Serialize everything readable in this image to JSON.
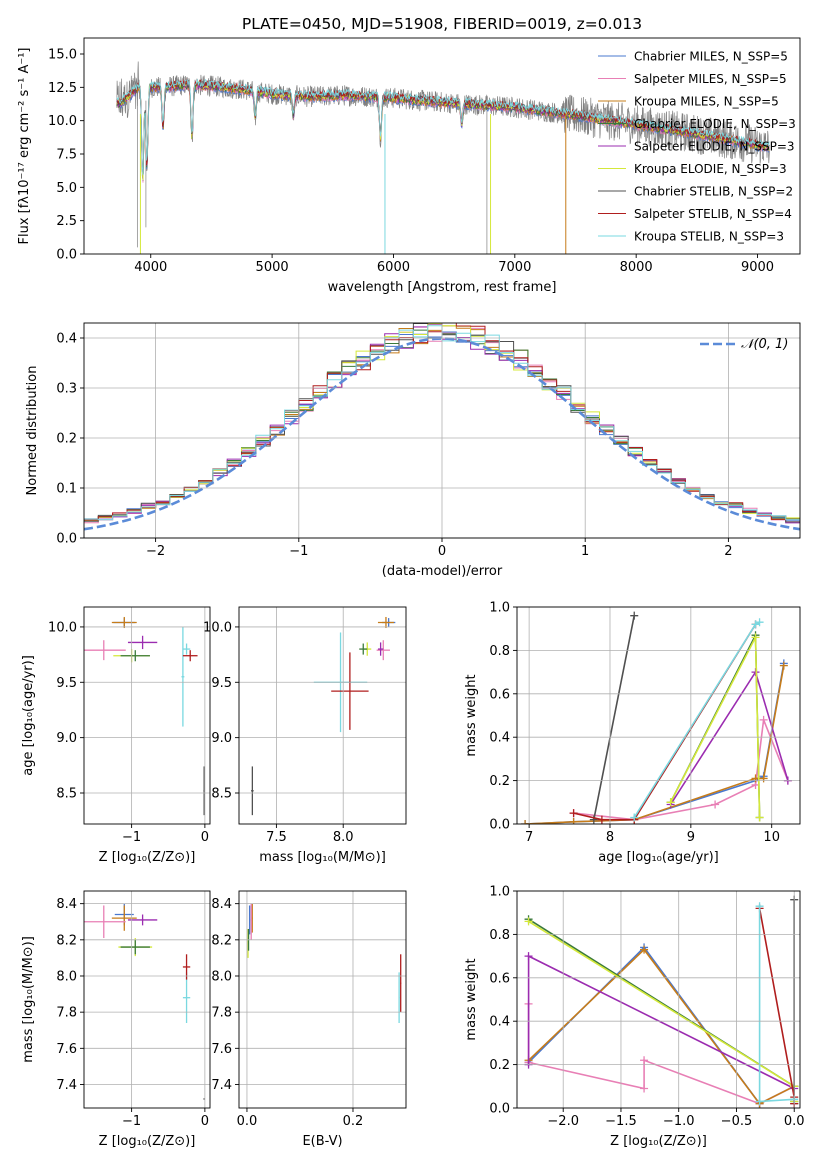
{
  "chart_data": [
    {
      "id": "spectrum",
      "type": "line",
      "title": "PLATE=0450, MJD=51908, FIBERID=0019, z=0.013",
      "xlabel": "wavelength [Angstrom, rest frame]",
      "ylabel": "Flux [fλ10⁻¹⁷ erg cm⁻² s⁻¹ A⁻¹]",
      "xlim": [
        3450,
        9350
      ],
      "ylim": [
        0,
        16.2
      ],
      "xticks": [
        "4000",
        "5000",
        "6000",
        "7000",
        "8000",
        "9000"
      ],
      "yticks": [
        "0.0",
        "2.5",
        "5.0",
        "7.5",
        "10.0",
        "12.5",
        "15.0"
      ],
      "grid": false,
      "legend_position": "top-right",
      "continuum_anchor_points": {
        "x": [
          3750,
          3900,
          4100,
          4300,
          4500,
          4800,
          5000,
          5300,
          5600,
          6000,
          6500,
          7000,
          7500,
          8000,
          8500,
          9100
        ],
        "y": [
          11.3,
          12.5,
          12.5,
          12.7,
          12.6,
          12.3,
          12.0,
          11.8,
          11.9,
          11.7,
          11.3,
          11.0,
          10.4,
          9.7,
          9.0,
          8.0
        ]
      },
      "series": [
        {
          "name": "Chabrier MILES, N_SSP=5"
        },
        {
          "name": "Salpeter MILES, N_SSP=5"
        },
        {
          "name": "Kroupa MILES, N_SSP=5"
        },
        {
          "name": "Chabrier ELODIE, N_SSP=3"
        },
        {
          "name": "Salpeter ELODIE, N_SSP=3"
        },
        {
          "name": "Kroupa ELODIE, N_SSP=3"
        },
        {
          "name": "Chabrier STELIB, N_SSP=2"
        },
        {
          "name": "Salpeter STELIB, N_SSP=4"
        },
        {
          "name": "Kroupa STELIB, N_SSP=3"
        }
      ]
    },
    {
      "id": "residuals",
      "type": "line",
      "xlabel": "(data-model)/error",
      "ylabel": "Normed distribution",
      "xlim": [
        -2.5,
        2.5
      ],
      "ylim": [
        0,
        0.43
      ],
      "xticks": [
        "−2",
        "−1",
        "0",
        "1",
        "2"
      ],
      "yticks": [
        "0.0",
        "0.1",
        "0.2",
        "0.3",
        "0.4"
      ],
      "grid": true,
      "legend_position": "top-right",
      "reference_curve": {
        "name": "𝒩(0, 1)",
        "mean": 0,
        "sigma": 1
      },
      "bin_width": 0.1
    },
    {
      "id": "age_vs_Z",
      "type": "scatter",
      "xlabel": "Z [log₁₀(Z/Z⊙)]",
      "ylabel": "age  [log₁₀(age/yr)]",
      "xlim": [
        -1.65,
        0.07
      ],
      "ylim": [
        8.22,
        10.18
      ],
      "xticks": [
        "−1",
        "0"
      ],
      "yticks": [
        "8.5",
        "9.0",
        "9.5",
        "10.0"
      ],
      "grid": true,
      "points": [
        {
          "x": -1.1,
          "y": 10.04,
          "xerr": 0.15,
          "yerr": 0.04,
          "c": 0
        },
        {
          "x": -1.1,
          "y": 10.04,
          "xerr": 0.17,
          "yerr": 0.05,
          "c": 2
        },
        {
          "x": -1.38,
          "y": 9.79,
          "xerr": 0.3,
          "yerr": 0.09,
          "c": 1
        },
        {
          "x": -0.85,
          "y": 9.86,
          "xerr": 0.2,
          "yerr": 0.06,
          "c": 4
        },
        {
          "x": -1.0,
          "y": 9.74,
          "xerr": 0.25,
          "yerr": 0.06,
          "c": 5
        },
        {
          "x": -0.95,
          "y": 9.74,
          "xerr": 0.2,
          "yerr": 0.05,
          "c": 3
        },
        {
          "x": -0.3,
          "y": 9.55,
          "xerr": 0.02,
          "yerr": 0.45,
          "c": 8
        },
        {
          "x": -0.2,
          "y": 9.74,
          "xerr": 0.1,
          "yerr": 0.05,
          "c": 7
        },
        {
          "x": -0.25,
          "y": 9.8,
          "xerr": 0.05,
          "yerr": 0.05,
          "c": 8
        },
        {
          "x": -0.01,
          "y": 8.52,
          "xerr": 0.01,
          "yerr": 0.22,
          "c": 6
        }
      ]
    },
    {
      "id": "age_vs_mass",
      "type": "scatter",
      "xlabel": "mass [log₁₀(M/M⊙)]",
      "ylabel": "",
      "xlim": [
        7.22,
        8.47
      ],
      "ylim": [
        8.22,
        10.18
      ],
      "xticks": [
        "7.5",
        "8.0"
      ],
      "yticks": [
        "8.5",
        "9.0",
        "9.5",
        "10.0"
      ],
      "grid": true,
      "points": [
        {
          "x": 8.34,
          "y": 10.04,
          "xerr": 0.05,
          "yerr": 0.04,
          "c": 0
        },
        {
          "x": 8.32,
          "y": 10.04,
          "xerr": 0.06,
          "yerr": 0.05,
          "c": 2
        },
        {
          "x": 8.3,
          "y": 9.79,
          "xerr": 0.05,
          "yerr": 0.09,
          "c": 1
        },
        {
          "x": 8.28,
          "y": 9.8,
          "xerr": 0.02,
          "yerr": 0.06,
          "c": 4
        },
        {
          "x": 8.18,
          "y": 9.8,
          "xerr": 0.03,
          "yerr": 0.06,
          "c": 5
        },
        {
          "x": 8.15,
          "y": 9.8,
          "xerr": 0.03,
          "yerr": 0.05,
          "c": 3
        },
        {
          "x": 7.98,
          "y": 9.5,
          "xerr": 0.2,
          "yerr": 0.45,
          "c": 8
        },
        {
          "x": 8.05,
          "y": 9.42,
          "xerr": 0.14,
          "yerr": 0.35,
          "c": 7
        },
        {
          "x": 7.32,
          "y": 8.52,
          "xerr": 0.01,
          "yerr": 0.22,
          "c": 6
        }
      ]
    },
    {
      "id": "weight_vs_age",
      "type": "line",
      "xlabel": "age  [log₁₀(age/yr)]",
      "ylabel": "mass weight",
      "xlim": [
        6.85,
        10.35
      ],
      "ylim": [
        0,
        1
      ],
      "xticks": [
        "7",
        "8",
        "9",
        "10"
      ],
      "yticks": [
        "0.0",
        "0.2",
        "0.4",
        "0.6",
        "0.8",
        "1.0"
      ],
      "grid": true,
      "series": [
        {
          "c": 0,
          "x": [
            6.95,
            7.55,
            8.3,
            9.8,
            9.9,
            10.15
          ],
          "y": [
            0.0,
            0.01,
            0.02,
            0.2,
            0.22,
            0.74
          ]
        },
        {
          "c": 1,
          "x": [
            7.55,
            8.3,
            9.3,
            9.8,
            9.9,
            10.2
          ],
          "y": [
            0.05,
            0.02,
            0.09,
            0.18,
            0.48,
            0.2
          ]
        },
        {
          "c": 2,
          "x": [
            6.95,
            7.55,
            8.3,
            9.8,
            9.9,
            10.15
          ],
          "y": [
            0.0,
            0.01,
            0.02,
            0.21,
            0.21,
            0.73
          ]
        },
        {
          "c": 3,
          "x": [
            8.75,
            9.8,
            9.85
          ],
          "y": [
            0.1,
            0.87,
            0.03
          ]
        },
        {
          "c": 4,
          "x": [
            8.75,
            9.8,
            10.2
          ],
          "y": [
            0.09,
            0.7,
            0.2
          ]
        },
        {
          "c": 5,
          "x": [
            8.75,
            9.8,
            9.85
          ],
          "y": [
            0.1,
            0.86,
            0.03
          ]
        },
        {
          "c": 6,
          "x": [
            7.8,
            8.3
          ],
          "y": [
            0.02,
            0.96
          ]
        },
        {
          "c": 7,
          "x": [
            7.55,
            7.9,
            8.3,
            9.8
          ],
          "y": [
            0.05,
            0.02,
            0.02,
            0.92
          ]
        },
        {
          "c": 8,
          "x": [
            8.3,
            9.8,
            9.85
          ],
          "y": [
            0.03,
            0.92,
            0.93
          ]
        }
      ]
    },
    {
      "id": "mass_vs_Z",
      "type": "scatter",
      "xlabel": "Z [log₁₀(Z/Z⊙)]",
      "ylabel": "mass [log₁₀(M/M⊙)]",
      "xlim": [
        -1.65,
        0.07
      ],
      "ylim": [
        7.27,
        8.47
      ],
      "xticks": [
        "−1",
        "0"
      ],
      "yticks": [
        "7.4",
        "7.6",
        "7.8",
        "8.0",
        "8.2",
        "8.4"
      ],
      "grid": true,
      "points": [
        {
          "x": -1.1,
          "y": 8.34,
          "xerr": 0.13,
          "yerr": 0.06,
          "c": 0
        },
        {
          "x": -1.1,
          "y": 8.32,
          "xerr": 0.17,
          "yerr": 0.07,
          "c": 2
        },
        {
          "x": -1.38,
          "y": 8.3,
          "xerr": 0.3,
          "yerr": 0.09,
          "c": 1
        },
        {
          "x": -0.85,
          "y": 8.31,
          "xerr": 0.2,
          "yerr": 0.03,
          "c": 4
        },
        {
          "x": -0.95,
          "y": 8.16,
          "xerr": 0.23,
          "yerr": 0.05,
          "c": 5
        },
        {
          "x": -0.95,
          "y": 8.16,
          "xerr": 0.2,
          "yerr": 0.04,
          "c": 3
        },
        {
          "x": -0.25,
          "y": 7.88,
          "xerr": 0.05,
          "yerr": 0.14,
          "c": 8
        },
        {
          "x": -0.25,
          "y": 8.05,
          "xerr": 0.05,
          "yerr": 0.07,
          "c": 7
        },
        {
          "x": -0.01,
          "y": 7.32,
          "xerr": 0.01,
          "yerr": 0.002,
          "c": 6
        }
      ]
    },
    {
      "id": "mass_vs_ebv",
      "type": "scatter",
      "xlabel": "E(B-V)",
      "ylabel": "",
      "xlim": [
        -0.015,
        0.3
      ],
      "ylim": [
        7.27,
        8.47
      ],
      "xticks": [
        "0.0",
        "0.2"
      ],
      "yticks": [
        "7.4",
        "7.6",
        "7.8",
        "8.0",
        "8.2",
        "8.4"
      ],
      "grid": true,
      "points": [
        {
          "x": 0.005,
          "y": 8.31,
          "xerr": 0.001,
          "yerr": 0.08,
          "c": 0
        },
        {
          "x": 0.01,
          "y": 8.32,
          "xerr": 0.001,
          "yerr": 0.08,
          "c": 2
        },
        {
          "x": 0.008,
          "y": 8.3,
          "xerr": 0.001,
          "yerr": 0.1,
          "c": 1
        },
        {
          "x": 0.002,
          "y": 8.18,
          "xerr": 0.001,
          "yerr": 0.08,
          "c": 5
        },
        {
          "x": 0.003,
          "y": 8.2,
          "xerr": 0.001,
          "yerr": 0.06,
          "c": 3
        },
        {
          "x": 0.287,
          "y": 7.88,
          "xerr": 0.001,
          "yerr": 0.14,
          "c": 8
        },
        {
          "x": 0.29,
          "y": 7.96,
          "xerr": 0.001,
          "yerr": 0.16,
          "c": 7
        }
      ]
    },
    {
      "id": "weight_vs_Z",
      "type": "line",
      "xlabel": "Z [log₁₀(Z/Z⊙)]",
      "ylabel": "mass weight",
      "xlim": [
        -2.4,
        0.05
      ],
      "ylim": [
        0,
        1
      ],
      "xticks": [
        "−2.0",
        "−1.5",
        "−1.0",
        "−0.5",
        "0.0"
      ],
      "yticks": [
        "0.0",
        "0.2",
        "0.4",
        "0.6",
        "0.8",
        "1.0"
      ],
      "grid": true,
      "series": [
        {
          "c": 0,
          "x": [
            -2.3,
            -1.3,
            -0.3,
            -0.3,
            0.0
          ],
          "y": [
            0.21,
            0.74,
            0.02,
            0.02,
            0.1
          ]
        },
        {
          "c": 1,
          "x": [
            -2.3,
            -2.3,
            -1.3,
            -1.3,
            -0.3,
            0.0
          ],
          "y": [
            0.48,
            0.21,
            0.09,
            0.22,
            0.02,
            0.1
          ]
        },
        {
          "c": 2,
          "x": [
            -2.3,
            -1.3,
            -0.3,
            0.0
          ],
          "y": [
            0.22,
            0.73,
            0.02,
            0.1
          ]
        },
        {
          "c": 3,
          "x": [
            -2.3,
            0.0,
            0.0
          ],
          "y": [
            0.87,
            0.1,
            0.03
          ]
        },
        {
          "c": 4,
          "x": [
            -2.3,
            -2.3,
            0.0
          ],
          "y": [
            0.2,
            0.7,
            0.09
          ]
        },
        {
          "c": 5,
          "x": [
            -2.3,
            0.0,
            0.0
          ],
          "y": [
            0.86,
            0.1,
            0.03
          ]
        },
        {
          "c": 6,
          "x": [
            0.0,
            0.0
          ],
          "y": [
            0.02,
            0.96
          ]
        },
        {
          "c": 7,
          "x": [
            -0.3,
            0.0,
            0.0
          ],
          "y": [
            0.92,
            0.05,
            0.02
          ]
        },
        {
          "c": 8,
          "x": [
            -0.3,
            -0.3,
            0.0
          ],
          "y": [
            0.93,
            0.03,
            0.04
          ]
        }
      ]
    }
  ],
  "palette": [
    "#4a78cf",
    "#e87fb5",
    "#c67c1a",
    "#3b7a3b",
    "#9b2cb0",
    "#d4e83a",
    "#505050",
    "#b01e1e",
    "#7ad8e0"
  ],
  "gaussian_color": "#5b8bd8"
}
